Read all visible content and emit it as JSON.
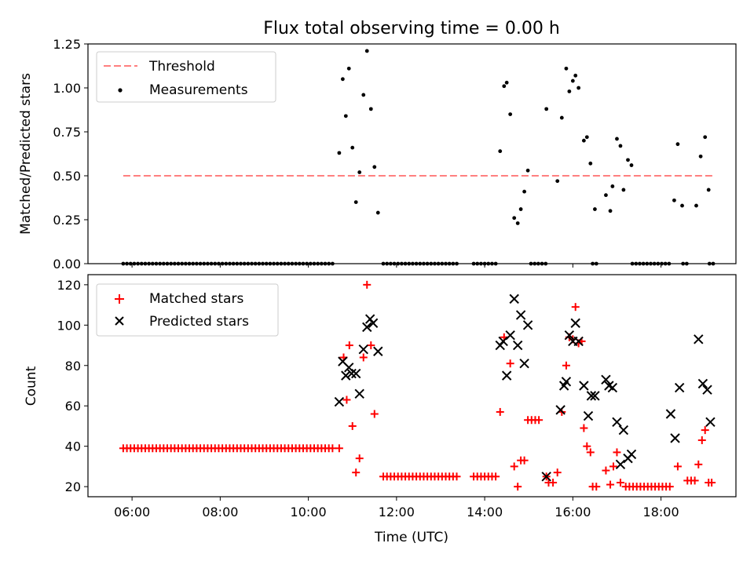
{
  "figure": {
    "title": "Flux total observing time = 0.00 h",
    "xlabel": "Time (UTC)",
    "x_ticks": [
      "06:00",
      "08:00",
      "10:00",
      "12:00",
      "14:00",
      "16:00",
      "18:00"
    ]
  },
  "colors": {
    "threshold": "#ff7f7f",
    "measurements": "#000000",
    "matched": "#ff0000",
    "predicted": "#000000"
  },
  "chart_data": [
    {
      "type": "scatter",
      "panel": "top",
      "ylabel": "Matched/Predicted stars",
      "xlim": [
        5.0,
        19.7
      ],
      "ylim": [
        0,
        1.25
      ],
      "y_ticks": [
        "0.00",
        "0.25",
        "0.50",
        "0.75",
        "1.00",
        "1.25"
      ],
      "grid": false,
      "legend": "top-left",
      "threshold": {
        "name": "Threshold",
        "value": 0.5,
        "x_range": [
          5.8,
          19.2
        ]
      },
      "series": [
        {
          "name": "Measurements",
          "x_start": 5.8,
          "x_step": 0.0833,
          "zero_ranges": [
            [
              5.8,
              10.6
            ],
            [
              11.7,
              13.4
            ],
            [
              13.75,
              14.3
            ],
            [
              15.05,
              15.4
            ],
            [
              16.45,
              16.6
            ],
            [
              17.35,
              18.25
            ],
            [
              18.5,
              18.65
            ],
            [
              19.1,
              19.2
            ]
          ],
          "points": [
            [
              10.7,
              0.63
            ],
            [
              10.78,
              1.05
            ],
            [
              10.85,
              0.84
            ],
            [
              10.92,
              1.11
            ],
            [
              11.0,
              0.66
            ],
            [
              11.08,
              0.35
            ],
            [
              11.16,
              0.52
            ],
            [
              11.25,
              0.96
            ],
            [
              11.33,
              1.21
            ],
            [
              11.42,
              0.88
            ],
            [
              11.5,
              0.55
            ],
            [
              11.58,
              0.29
            ],
            [
              14.35,
              0.64
            ],
            [
              14.44,
              1.01
            ],
            [
              14.5,
              1.03
            ],
            [
              14.58,
              0.85
            ],
            [
              14.67,
              0.26
            ],
            [
              14.75,
              0.23
            ],
            [
              14.82,
              0.31
            ],
            [
              14.9,
              0.41
            ],
            [
              14.98,
              0.53
            ],
            [
              15.4,
              0.88
            ],
            [
              15.65,
              0.47
            ],
            [
              15.75,
              0.83
            ],
            [
              15.85,
              1.11
            ],
            [
              15.92,
              0.98
            ],
            [
              16.0,
              1.04
            ],
            [
              16.06,
              1.07
            ],
            [
              16.13,
              1.0
            ],
            [
              16.25,
              0.7
            ],
            [
              16.32,
              0.72
            ],
            [
              16.4,
              0.57
            ],
            [
              16.5,
              0.31
            ],
            [
              16.75,
              0.39
            ],
            [
              16.85,
              0.3
            ],
            [
              16.9,
              0.44
            ],
            [
              17.0,
              0.71
            ],
            [
              17.08,
              0.67
            ],
            [
              17.15,
              0.42
            ],
            [
              17.25,
              0.59
            ],
            [
              17.33,
              0.56
            ],
            [
              18.3,
              0.36
            ],
            [
              18.38,
              0.68
            ],
            [
              18.48,
              0.33
            ],
            [
              18.8,
              0.33
            ],
            [
              18.9,
              0.61
            ],
            [
              19.0,
              0.72
            ],
            [
              19.08,
              0.42
            ]
          ]
        }
      ]
    },
    {
      "type": "scatter",
      "panel": "bottom",
      "ylabel": "Count",
      "xlim": [
        5.0,
        19.7
      ],
      "ylim": [
        15,
        125
      ],
      "y_ticks": [
        "20",
        "40",
        "60",
        "80",
        "100",
        "120"
      ],
      "grid": false,
      "legend": "top-left",
      "series": [
        {
          "name": "Matched stars",
          "marker": "plus",
          "flat_runs": [
            {
              "x_range": [
                5.8,
                10.6
              ],
              "y": 39
            },
            {
              "x_range": [
                11.7,
                13.4
              ],
              "y": 25
            },
            {
              "x_range": [
                13.75,
                14.3
              ],
              "y": 25
            },
            {
              "x_range": [
                14.98,
                15.3
              ],
              "y": 53
            },
            {
              "x_range": [
                16.45,
                16.6
              ],
              "y": 20
            },
            {
              "x_range": [
                17.2,
                18.2
              ],
              "y": 20
            },
            {
              "x_range": [
                18.6,
                18.8
              ],
              "y": 23
            }
          ],
          "points": [
            [
              10.7,
              39
            ],
            [
              10.8,
              84
            ],
            [
              10.87,
              63
            ],
            [
              10.93,
              90
            ],
            [
              11.0,
              50
            ],
            [
              11.08,
              27
            ],
            [
              11.16,
              34
            ],
            [
              11.25,
              84
            ],
            [
              11.33,
              120
            ],
            [
              11.42,
              90
            ],
            [
              11.5,
              56
            ],
            [
              14.35,
              57
            ],
            [
              14.44,
              94
            ],
            [
              14.58,
              81
            ],
            [
              14.67,
              30
            ],
            [
              14.75,
              20
            ],
            [
              14.82,
              33
            ],
            [
              14.9,
              33
            ],
            [
              15.4,
              25
            ],
            [
              15.45,
              22
            ],
            [
              15.55,
              22
            ],
            [
              15.65,
              27
            ],
            [
              15.75,
              57
            ],
            [
              15.85,
              80
            ],
            [
              15.92,
              94
            ],
            [
              16.0,
              93
            ],
            [
              16.06,
              109
            ],
            [
              16.13,
              91
            ],
            [
              16.2,
              92
            ],
            [
              16.25,
              49
            ],
            [
              16.32,
              40
            ],
            [
              16.4,
              37
            ],
            [
              16.75,
              28
            ],
            [
              16.85,
              21
            ],
            [
              16.92,
              30
            ],
            [
              17.0,
              37
            ],
            [
              17.08,
              22
            ],
            [
              18.38,
              30
            ],
            [
              18.85,
              31
            ],
            [
              18.93,
              43
            ],
            [
              19.0,
              48
            ],
            [
              19.08,
              22
            ],
            [
              19.15,
              22
            ]
          ]
        },
        {
          "name": "Predicted stars",
          "marker": "x",
          "points": [
            [
              10.7,
              62
            ],
            [
              10.78,
              82
            ],
            [
              10.85,
              75
            ],
            [
              10.92,
              79
            ],
            [
              10.98,
              76
            ],
            [
              11.08,
              76
            ],
            [
              11.16,
              66
            ],
            [
              11.25,
              88
            ],
            [
              11.33,
              99
            ],
            [
              11.4,
              103
            ],
            [
              11.47,
              101
            ],
            [
              11.58,
              87
            ],
            [
              14.35,
              90
            ],
            [
              14.42,
              92
            ],
            [
              14.5,
              75
            ],
            [
              14.58,
              95
            ],
            [
              14.67,
              113
            ],
            [
              14.75,
              90
            ],
            [
              14.82,
              105
            ],
            [
              14.9,
              81
            ],
            [
              14.98,
              100
            ],
            [
              15.4,
              25
            ],
            [
              15.72,
              58
            ],
            [
              15.8,
              70
            ],
            [
              15.85,
              72
            ],
            [
              15.92,
              95
            ],
            [
              16.0,
              92
            ],
            [
              16.06,
              101
            ],
            [
              16.13,
              92
            ],
            [
              16.25,
              70
            ],
            [
              16.35,
              55
            ],
            [
              16.42,
              65
            ],
            [
              16.5,
              65
            ],
            [
              16.75,
              73
            ],
            [
              16.82,
              70
            ],
            [
              16.9,
              69
            ],
            [
              17.0,
              52
            ],
            [
              17.08,
              31
            ],
            [
              17.15,
              48
            ],
            [
              17.25,
              34
            ],
            [
              17.33,
              36
            ],
            [
              18.22,
              56
            ],
            [
              18.32,
              44
            ],
            [
              18.42,
              69
            ],
            [
              18.85,
              93
            ],
            [
              18.95,
              71
            ],
            [
              19.05,
              68
            ],
            [
              19.12,
              52
            ]
          ]
        }
      ]
    }
  ]
}
